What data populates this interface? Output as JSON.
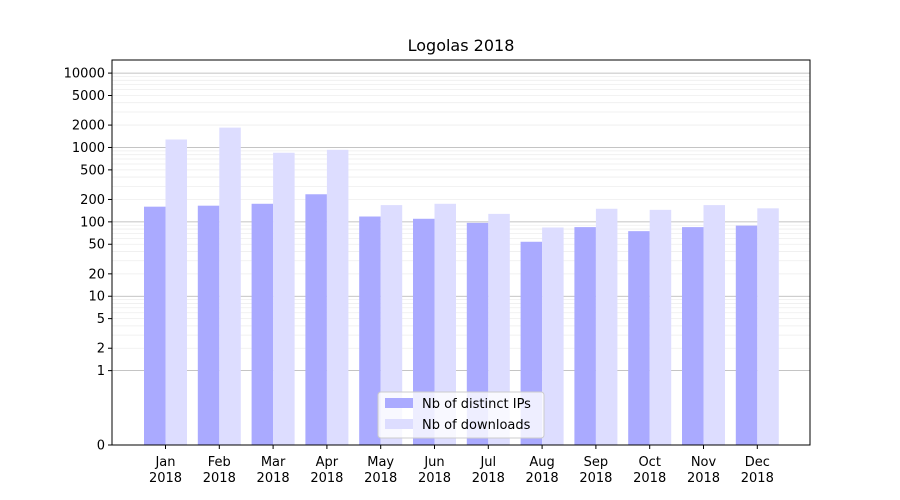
{
  "chart_data": {
    "type": "bar",
    "title": "Logolas 2018",
    "xlabel": "",
    "ylabel": "",
    "scale": "symlog",
    "ylim": [
      0,
      15000
    ],
    "grid": "horizontal",
    "legend_position": "lower-center",
    "categories": [
      [
        "Jan",
        "2018"
      ],
      [
        "Feb",
        "2018"
      ],
      [
        "Mar",
        "2018"
      ],
      [
        "Apr",
        "2018"
      ],
      [
        "May",
        "2018"
      ],
      [
        "Jun",
        "2018"
      ],
      [
        "Jul",
        "2018"
      ],
      [
        "Aug",
        "2018"
      ],
      [
        "Sep",
        "2018"
      ],
      [
        "Oct",
        "2018"
      ],
      [
        "Nov",
        "2018"
      ],
      [
        "Dec",
        "2018"
      ]
    ],
    "yticks": [
      0,
      1,
      2,
      5,
      10,
      20,
      50,
      100,
      200,
      500,
      1000,
      2000,
      5000,
      10000
    ],
    "yticks_labels": [
      "0",
      "1",
      "2",
      "5",
      "10",
      "20",
      "50",
      "100",
      "200",
      "500",
      "1000",
      "2000",
      "5000",
      "10000"
    ],
    "series": [
      {
        "name": "Nb of distinct IPs",
        "color": "#aaaaff",
        "values": [
          160,
          165,
          175,
          235,
          118,
          110,
          97,
          54,
          85,
          75,
          85,
          89
        ]
      },
      {
        "name": "Nb of downloads",
        "color": "#ddddff",
        "values": [
          1280,
          1850,
          850,
          930,
          168,
          175,
          128,
          84,
          150,
          145,
          168,
          152
        ]
      }
    ]
  }
}
